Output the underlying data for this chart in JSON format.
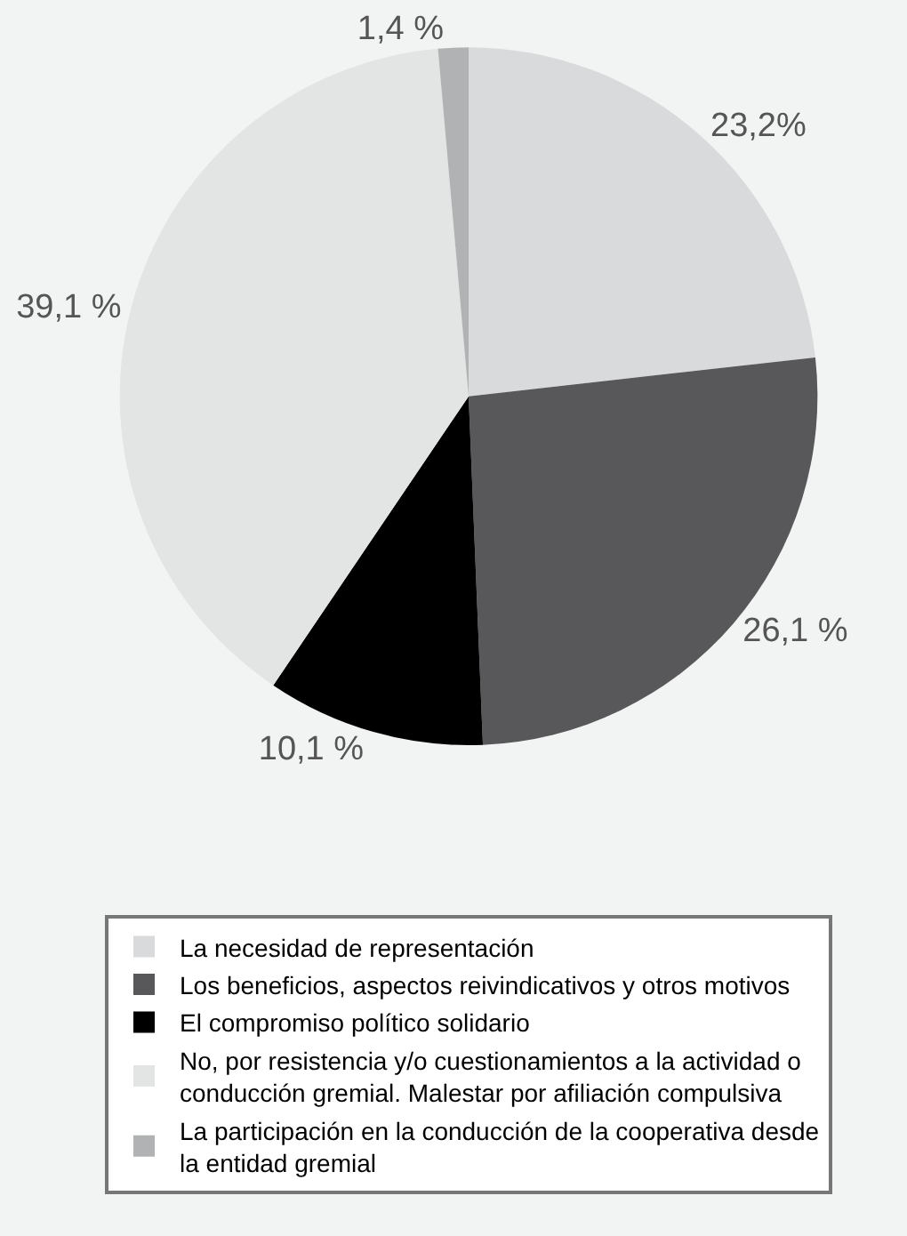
{
  "chart_data": {
    "type": "pie",
    "categories": [
      "La necesidad de representación",
      "Los beneficios, aspectos reivindicativos y otros motivos",
      "El compromiso político solidario",
      "No, por resistencia y/o cuestionamientos a la actividad o conducción gremial. Malestar por afiliación compulsiva",
      "La participación en la conducción de la cooperativa desde la entidad gremial"
    ],
    "values": [
      23.2,
      26.1,
      10.1,
      39.1,
      1.4
    ],
    "value_labels": [
      "23,2%",
      "26,1 %",
      "10,1 %",
      "39,1 %",
      "1,4 %"
    ],
    "colors": [
      "#d9dadb",
      "#58585a",
      "#000000",
      "#e3e4e4",
      "#b1b2b3"
    ],
    "legend": "bottom"
  }
}
